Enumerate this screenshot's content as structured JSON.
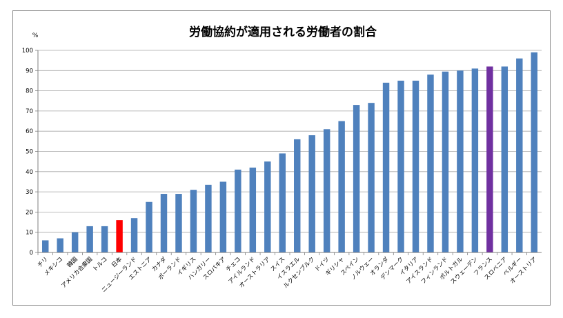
{
  "chart_data": {
    "type": "bar",
    "title": "労働協約が適用される労働者の割合",
    "ylabel": "%",
    "xlabel": "",
    "ylim": [
      0,
      100
    ],
    "yticks": [
      0,
      10,
      20,
      30,
      40,
      50,
      60,
      70,
      80,
      90,
      100
    ],
    "grid": true,
    "legend": "none",
    "categories": [
      "チリ",
      "メキシコ",
      "韓国",
      "アメリカ合衆国",
      "トルコ",
      "日本",
      "ニュージーランド",
      "エストニア",
      "カナダ",
      "ポーランド",
      "イギリス",
      "ハンガリー",
      "スロバキア",
      "チェコ",
      "アイルランド",
      "オーストラリア",
      "スイス",
      "イスラエル",
      "ルクセンブルク",
      "ドイツ",
      "ギリシャ",
      "スペイン",
      "ノルウェー",
      "オランダ",
      "デンマーク",
      "イタリア",
      "アイスランド",
      "フィンランド",
      "ポルトガル",
      "スウェーデン",
      "フランス",
      "スロベニア",
      "ベルギー",
      "オーストリア"
    ],
    "values": [
      6,
      7,
      10,
      13,
      13,
      16,
      17,
      25,
      29,
      29,
      31,
      33.5,
      35,
      41,
      42,
      45,
      49,
      56,
      58,
      61,
      65,
      73,
      74,
      84,
      85,
      85,
      88,
      89.5,
      90,
      91,
      92,
      92,
      96,
      99
    ],
    "colors": {
      "default": "#4f81bd",
      "日本": "#ff0000",
      "フランス": "#7030a0"
    },
    "gridline_color": "#a6a6a6",
    "axis_color": "#7f7f7f"
  }
}
